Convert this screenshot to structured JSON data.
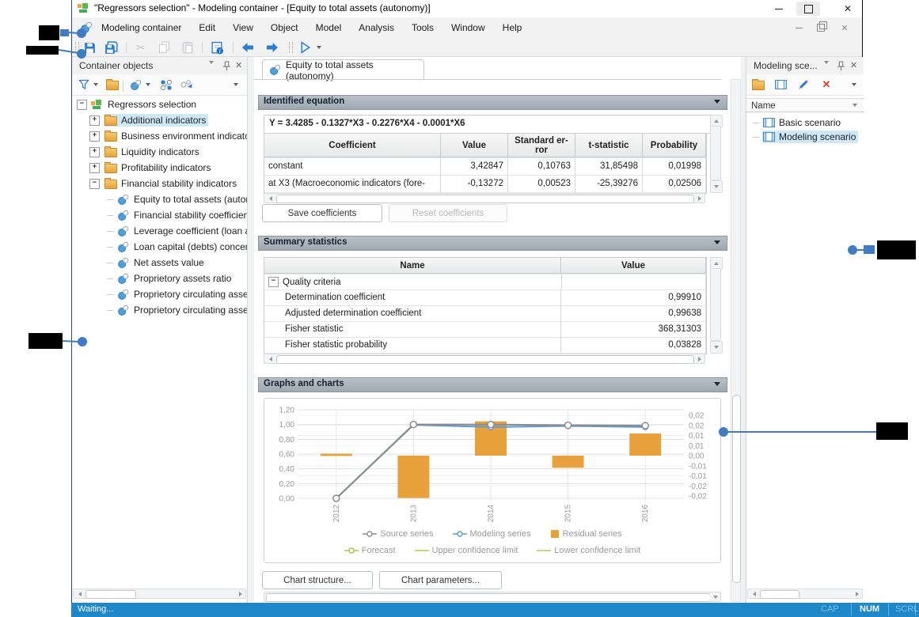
{
  "window": {
    "title": "\"Regressors selection\" - Modeling container - [Equity to total assets (autonomy)]"
  },
  "menu": {
    "items": [
      "Modeling container",
      "Edit",
      "View",
      "Object",
      "Model",
      "Analysis",
      "Tools",
      "Window",
      "Help"
    ]
  },
  "toolbar": {
    "icons": [
      "save-icon",
      "save-all-icon",
      "cut-icon",
      "copy-icon",
      "paste-icon",
      "report-info-icon",
      "back-icon",
      "forward-icon",
      "run-icon"
    ]
  },
  "icons": {
    "window-close": "✕",
    "mdi-close": "✕",
    "panel-close": "✕",
    "cut": "✂"
  },
  "left_panel": {
    "title": "Container objects",
    "tree": {
      "root": "Regressors selection",
      "folders": [
        {
          "label": "Additional indicators",
          "state": "collapsed",
          "selected": true
        },
        {
          "label": "Business environment indicators",
          "state": "collapsed"
        },
        {
          "label": "Liquidity indicators",
          "state": "collapsed"
        },
        {
          "label": "Profitability indicators",
          "state": "collapsed"
        },
        {
          "label": "Financial stability indicators",
          "state": "expanded",
          "children": [
            "Equity to total assets (autono",
            "Financial stability coefficient",
            "Leverage coefficient (loan ass",
            "Loan capital (debts) concentra",
            "Net assets value",
            "Proprietory assets ratio",
            "Proprietory circulating assets",
            "Proprietory circulating assets"
          ]
        }
      ]
    }
  },
  "main": {
    "tab": "Equity to total assets (autonomy)",
    "identified_equation": {
      "title": "Identified equation",
      "equation": "Y = 3.4285 - 0.1327*X3 - 0.2276*X4 - 0.0001*X6",
      "columns": [
        "Coefficient",
        "Value",
        "Standard er-ror",
        "t-statistic",
        "Probability"
      ],
      "rows": [
        [
          "constant",
          "3,42847",
          "0,10763",
          "31,85498",
          "0,01998"
        ],
        [
          "at X3 (Macroeconomic indicators (fore-",
          "-0,13272",
          "0,00523",
          "-25,39276",
          "0,02506"
        ]
      ],
      "save_button": "Save coefficients",
      "reset_button": "Reset coefficients"
    },
    "summary_statistics": {
      "title": "Summary statistics",
      "columns": [
        "Name",
        "Value"
      ],
      "group": "Quality criteria",
      "rows": [
        [
          "Determination coefficient",
          "0,99910"
        ],
        [
          "Adjusted determination coefficient",
          "0,99638"
        ],
        [
          "Fisher statistic",
          "368,31303"
        ],
        [
          "Fisher statistic probability",
          "0,03828"
        ]
      ]
    },
    "graphs": {
      "title": "Graphs and charts",
      "structure_button": "Chart structure...",
      "parameters_button": "Chart parameters..."
    }
  },
  "right_panel": {
    "title": "Modeling sce...",
    "column": "Name",
    "items": [
      {
        "label": "Basic scenario",
        "selected": false
      },
      {
        "label": "Modeling scenario",
        "selected": true
      }
    ]
  },
  "status_bar": {
    "text": "Waiting...",
    "cap": "CAP",
    "num": "NUM",
    "scrl": "SCRL"
  },
  "chart_data": {
    "type": "combo",
    "x": [
      "2012",
      "2013",
      "2014",
      "2015",
      "2016"
    ],
    "left_axis": {
      "labels": [
        "1,20",
        "1,00",
        "0,80",
        "0,60",
        "0,40",
        "0,20",
        "0,00"
      ],
      "min": 0,
      "max": 1.2
    },
    "right_axis": {
      "labels": [
        "0,02",
        "0,02",
        "0,01",
        "0,01",
        "0,00",
        "-0,01",
        "-0,01",
        "-0,02",
        "-0,02"
      ],
      "min": -0.02,
      "max": 0.02
    },
    "grid": true,
    "legend_position": "bottom",
    "series": [
      {
        "name": "Source series",
        "type": "line",
        "axis": "left",
        "color": "#8c8c8c",
        "legend": "line-circle",
        "values": [
          0.0,
          1.0,
          1.0,
          0.99,
          0.985
        ]
      },
      {
        "name": "Modeling series",
        "type": "line",
        "axis": "left",
        "color": "#5b9bd5",
        "legend": "line-circle",
        "values": [
          0.0,
          0.995,
          0.965,
          0.98,
          0.965
        ]
      },
      {
        "name": "Residual series",
        "type": "bar",
        "axis": "right",
        "color": "#e9a23b",
        "legend": "swatch",
        "values": [
          0.001,
          -0.021,
          0.017,
          -0.006,
          0.011
        ]
      },
      {
        "name": "Forecast",
        "type": "line",
        "axis": "left",
        "color": "#a9c23f",
        "legend": "line-circle",
        "values": []
      },
      {
        "name": "Upper confidence limit",
        "type": "line",
        "axis": "left",
        "color": "#b5c94a",
        "legend": "line",
        "values": []
      },
      {
        "name": "Lower confidence limit",
        "type": "line",
        "axis": "left",
        "color": "#b5c94a",
        "legend": "line",
        "values": []
      }
    ]
  }
}
